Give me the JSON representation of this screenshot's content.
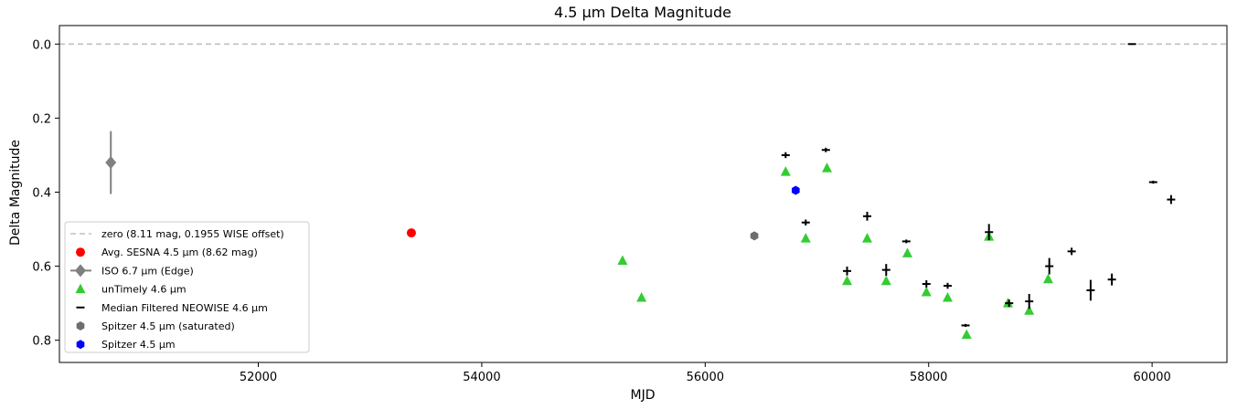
{
  "chart_data": {
    "type": "scatter",
    "title": "4.5 μm Delta Magnitude",
    "xlabel": "MJD",
    "ylabel": "Delta Magnitude",
    "xlim": [
      50220,
      60670
    ],
    "ylim": [
      0.86,
      -0.05
    ],
    "y_inverted": true,
    "xticks": [
      52000,
      54000,
      56000,
      58000,
      60000
    ],
    "yticks": [
      0.0,
      0.2,
      0.4,
      0.6,
      0.8
    ],
    "xtick_labels": [
      "52000",
      "54000",
      "56000",
      "58000",
      "60000"
    ],
    "ytick_labels": [
      "0.0",
      "0.2",
      "0.4",
      "0.6",
      "0.8"
    ],
    "grid": false,
    "legend_position": "lower-left",
    "colors": {
      "zero_line": "#c0c0c0",
      "sesna": "#ff0000",
      "iso": "#808080",
      "untimely": "#33cc33",
      "neowise": "#000000",
      "spitzer_saturated": "#6e6e6e",
      "spitzer": "#0000ff"
    },
    "zero_line": {
      "value": 0.0,
      "label": "zero (8.11 mag, 0.1955 WISE offset)"
    },
    "series": [
      {
        "key": "sesna",
        "name": "Avg. SESNA 4.5 μm (8.62 mag)",
        "marker": "circle",
        "points": [
          {
            "x": 53370,
            "y": 0.51
          }
        ]
      },
      {
        "key": "iso",
        "name": "ISO 6.7 μm (Edge)",
        "marker": "diamond",
        "points": [
          {
            "x": 50680,
            "y": 0.32,
            "yerr": 0.085
          }
        ]
      },
      {
        "key": "untimely",
        "name": "unTimely 4.6 μm",
        "marker": "triangle",
        "points": [
          {
            "x": 55260,
            "y": 0.585
          },
          {
            "x": 55430,
            "y": 0.685
          },
          {
            "x": 56720,
            "y": 0.345
          },
          {
            "x": 56900,
            "y": 0.525
          },
          {
            "x": 57090,
            "y": 0.335
          },
          {
            "x": 57270,
            "y": 0.64
          },
          {
            "x": 57450,
            "y": 0.525
          },
          {
            "x": 57620,
            "y": 0.64
          },
          {
            "x": 57810,
            "y": 0.565
          },
          {
            "x": 57980,
            "y": 0.67
          },
          {
            "x": 58170,
            "y": 0.685
          },
          {
            "x": 58340,
            "y": 0.785
          },
          {
            "x": 58540,
            "y": 0.52
          },
          {
            "x": 58710,
            "y": 0.7
          },
          {
            "x": 58900,
            "y": 0.72
          },
          {
            "x": 59070,
            "y": 0.635
          }
        ]
      },
      {
        "key": "neowise",
        "name": "Median Filtered NEOWISE 4.6 μm",
        "marker": "hline",
        "points": [
          {
            "x": 56720,
            "y": 0.3,
            "yerr": 0.008
          },
          {
            "x": 56900,
            "y": 0.482,
            "yerr": 0.008
          },
          {
            "x": 57080,
            "y": 0.286,
            "yerr": 0.006
          },
          {
            "x": 57270,
            "y": 0.613,
            "yerr": 0.012
          },
          {
            "x": 57450,
            "y": 0.465,
            "yerr": 0.012
          },
          {
            "x": 57620,
            "y": 0.61,
            "yerr": 0.016
          },
          {
            "x": 57800,
            "y": 0.533,
            "yerr": 0.005
          },
          {
            "x": 57980,
            "y": 0.648,
            "yerr": 0.01
          },
          {
            "x": 58170,
            "y": 0.653,
            "yerr": 0.008
          },
          {
            "x": 58330,
            "y": 0.76,
            "yerr": 0.004
          },
          {
            "x": 58540,
            "y": 0.508,
            "yerr": 0.022
          },
          {
            "x": 58720,
            "y": 0.7,
            "yerr": 0.01
          },
          {
            "x": 58900,
            "y": 0.695,
            "yerr": 0.02
          },
          {
            "x": 59080,
            "y": 0.6,
            "yerr": 0.022
          },
          {
            "x": 59280,
            "y": 0.56,
            "yerr": 0.01
          },
          {
            "x": 59450,
            "y": 0.665,
            "yerr": 0.028
          },
          {
            "x": 59640,
            "y": 0.636,
            "yerr": 0.016
          },
          {
            "x": 59820,
            "y": 0.0,
            "yerr": 0.002
          },
          {
            "x": 60010,
            "y": 0.373,
            "yerr": 0.004
          },
          {
            "x": 60170,
            "y": 0.42,
            "yerr": 0.012
          }
        ]
      },
      {
        "key": "spitzer_saturated",
        "name": "Spitzer 4.5 μm (saturated)",
        "marker": "hexagon",
        "points": [
          {
            "x": 56440,
            "y": 0.518
          }
        ]
      },
      {
        "key": "spitzer",
        "name": "Spitzer 4.5 μm",
        "marker": "hexagon",
        "points": [
          {
            "x": 56810,
            "y": 0.395
          }
        ]
      }
    ]
  }
}
